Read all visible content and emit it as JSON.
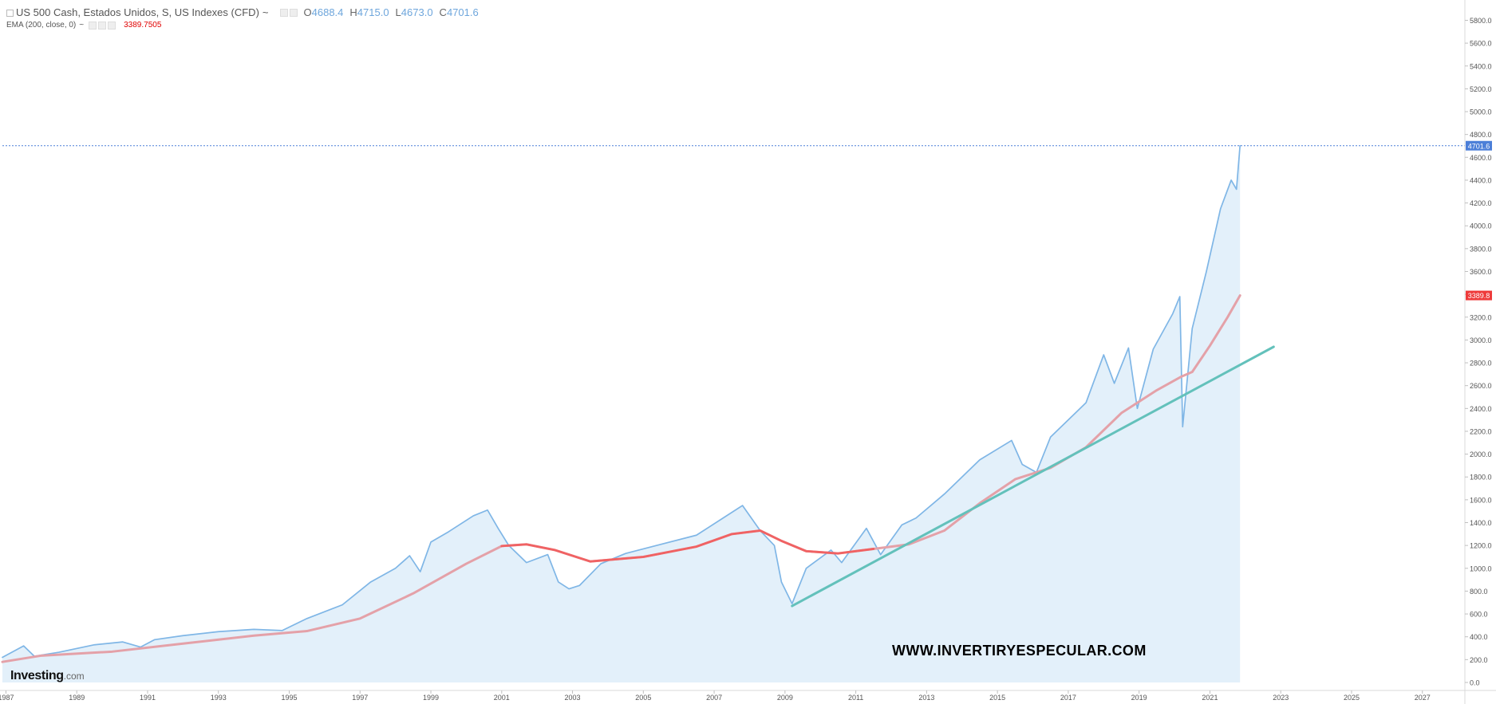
{
  "legend": {
    "title": "US 500 Cash, Estados Unidos, S, US Indexes (CFD)",
    "title_caret": "~",
    "ohlc": [
      {
        "label": "O",
        "value": "4688.4"
      },
      {
        "label": "H",
        "value": "4715.0"
      },
      {
        "label": "L",
        "value": "4673.0"
      },
      {
        "label": "C",
        "value": "4701.6"
      }
    ],
    "ema_label": "EMA (200, close, 0)",
    "ema_caret": "~",
    "ema_value": "3389.7505"
  },
  "watermark": "WWW.INVERTIRYESPECULAR.COM",
  "logo": {
    "main": "Investing",
    "suffix": ".com"
  },
  "colors": {
    "price_line": "#7fb6e6",
    "price_fill": "#e3f0fa",
    "ema_line": "#e4a1a8",
    "ema_line_dark": "#f15b5b",
    "trendline": "#63c1bb",
    "last_price_badge": "#4c7fd8",
    "ema_badge": "#ee3b3b",
    "axis_text": "#555555"
  },
  "chart_data": {
    "type": "area",
    "x_range": [
      1986.9,
      2028.2
    ],
    "ylim": [
      -70,
      5950
    ],
    "x_ticks": [
      "1987",
      "1989",
      "1991",
      "1993",
      "1995",
      "1997",
      "1999",
      "2001",
      "2003",
      "2005",
      "2007",
      "2009",
      "2011",
      "2013",
      "2015",
      "2017",
      "2019",
      "2021",
      "2023",
      "2025",
      "2027"
    ],
    "y_ticks": [
      "0.0",
      "200.0",
      "400.0",
      "600.0",
      "800.0",
      "1000.0",
      "1200.0",
      "1400.0",
      "1600.0",
      "1800.0",
      "2000.0",
      "2200.0",
      "2400.0",
      "2600.0",
      "2800.0",
      "3000.0",
      "3200.0",
      "3400.0",
      "3600.0",
      "3800.0",
      "4000.0",
      "4200.0",
      "4400.0",
      "4600.0",
      "4800.0",
      "5000.0",
      "5200.0",
      "5400.0",
      "5600.0",
      "5800.0"
    ],
    "last_price": {
      "value": 4701.6,
      "label": "4701.6"
    },
    "ema_last": {
      "value": 3389.8,
      "label": "3389.8"
    },
    "series": [
      {
        "name": "US 500 Cash",
        "kind": "area-line",
        "points": [
          [
            1986.9,
            220
          ],
          [
            1987.5,
            320
          ],
          [
            1987.8,
            230
          ],
          [
            1988.5,
            265
          ],
          [
            1989.5,
            330
          ],
          [
            1990.3,
            355
          ],
          [
            1990.8,
            310
          ],
          [
            1991.2,
            375
          ],
          [
            1992.0,
            410
          ],
          [
            1993.0,
            445
          ],
          [
            1994.0,
            465
          ],
          [
            1994.8,
            455
          ],
          [
            1995.5,
            560
          ],
          [
            1996.5,
            680
          ],
          [
            1997.3,
            880
          ],
          [
            1998.0,
            1000
          ],
          [
            1998.4,
            1110
          ],
          [
            1998.7,
            970
          ],
          [
            1999.0,
            1230
          ],
          [
            1999.5,
            1320
          ],
          [
            2000.2,
            1460
          ],
          [
            2000.6,
            1510
          ],
          [
            2000.9,
            1350
          ],
          [
            2001.2,
            1200
          ],
          [
            2001.7,
            1050
          ],
          [
            2002.3,
            1120
          ],
          [
            2002.6,
            880
          ],
          [
            2002.9,
            820
          ],
          [
            2003.2,
            850
          ],
          [
            2003.8,
            1040
          ],
          [
            2004.5,
            1130
          ],
          [
            2005.5,
            1210
          ],
          [
            2006.5,
            1290
          ],
          [
            2007.3,
            1450
          ],
          [
            2007.8,
            1550
          ],
          [
            2008.3,
            1330
          ],
          [
            2008.7,
            1200
          ],
          [
            2008.9,
            880
          ],
          [
            2009.2,
            690
          ],
          [
            2009.6,
            1000
          ],
          [
            2010.3,
            1160
          ],
          [
            2010.6,
            1050
          ],
          [
            2011.3,
            1350
          ],
          [
            2011.7,
            1120
          ],
          [
            2012.3,
            1380
          ],
          [
            2012.7,
            1440
          ],
          [
            2013.5,
            1650
          ],
          [
            2014.5,
            1950
          ],
          [
            2015.4,
            2120
          ],
          [
            2015.7,
            1910
          ],
          [
            2016.1,
            1840
          ],
          [
            2016.5,
            2150
          ],
          [
            2017.5,
            2450
          ],
          [
            2018.0,
            2870
          ],
          [
            2018.3,
            2620
          ],
          [
            2018.7,
            2930
          ],
          [
            2018.95,
            2400
          ],
          [
            2019.4,
            2920
          ],
          [
            2019.95,
            3230
          ],
          [
            2020.15,
            3380
          ],
          [
            2020.23,
            2240
          ],
          [
            2020.5,
            3100
          ],
          [
            2020.9,
            3600
          ],
          [
            2021.3,
            4150
          ],
          [
            2021.6,
            4400
          ],
          [
            2021.75,
            4320
          ],
          [
            2021.85,
            4701.6
          ]
        ]
      },
      {
        "name": "EMA (200, close, 0)",
        "kind": "line",
        "points": [
          [
            1986.9,
            180
          ],
          [
            1988.0,
            235
          ],
          [
            1990.0,
            270
          ],
          [
            1992.0,
            340
          ],
          [
            1994.0,
            410
          ],
          [
            1995.5,
            450
          ],
          [
            1997.0,
            560
          ],
          [
            1998.5,
            780
          ],
          [
            2000.0,
            1040
          ],
          [
            2001.0,
            1195
          ],
          [
            2001.7,
            1210
          ],
          [
            2002.5,
            1160
          ],
          [
            2003.5,
            1060
          ],
          [
            2005.0,
            1100
          ],
          [
            2006.5,
            1190
          ],
          [
            2007.5,
            1300
          ],
          [
            2008.3,
            1330
          ],
          [
            2008.9,
            1240
          ],
          [
            2009.6,
            1150
          ],
          [
            2010.5,
            1130
          ],
          [
            2011.5,
            1170
          ],
          [
            2012.5,
            1210
          ],
          [
            2013.5,
            1330
          ],
          [
            2014.5,
            1570
          ],
          [
            2015.5,
            1780
          ],
          [
            2016.5,
            1880
          ],
          [
            2017.5,
            2060
          ],
          [
            2018.5,
            2360
          ],
          [
            2019.5,
            2560
          ],
          [
            2020.2,
            2680
          ],
          [
            2020.5,
            2720
          ],
          [
            2021.0,
            2950
          ],
          [
            2021.5,
            3200
          ],
          [
            2021.85,
            3389.8
          ]
        ]
      },
      {
        "name": "Trendline",
        "kind": "line",
        "points": [
          [
            2009.2,
            670
          ],
          [
            2022.8,
            2940
          ]
        ]
      }
    ]
  }
}
